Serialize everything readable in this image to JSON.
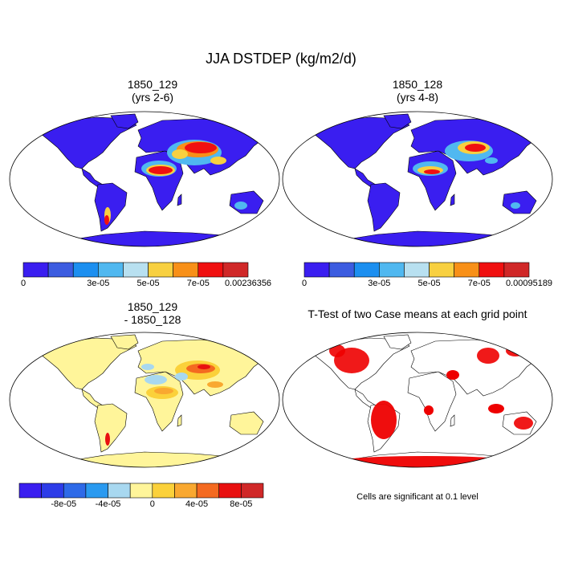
{
  "chart_data": {
    "type": "heatmap",
    "title": "JJA DSTDEP (kg/m2/d)",
    "panels": [
      {
        "title": "1850_129",
        "subtitle": "(yrs 2-6)",
        "colorbar": {
          "colors": [
            "#3a1ef0",
            "#3c5ce0",
            "#1c8ff0",
            "#50b8f0",
            "#b8e0f0",
            "#f8d040",
            "#f89018",
            "#f01010",
            "#d02828"
          ],
          "tick_labels": [
            "0",
            "3e-05",
            "5e-05",
            "7e-05",
            "0.00236356"
          ]
        }
      },
      {
        "title": "1850_128",
        "subtitle": "(yrs 4-8)",
        "colorbar": {
          "colors": [
            "#3a1ef0",
            "#3c5ce0",
            "#1c8ff0",
            "#50b8f0",
            "#b8e0f0",
            "#f8d040",
            "#f89018",
            "#f01010",
            "#d02828"
          ],
          "tick_labels": [
            "0",
            "3e-05",
            "5e-05",
            "7e-05",
            "0.00095189"
          ]
        }
      },
      {
        "title": "1850_129",
        "subtitle": "- 1850_128",
        "colorbar": {
          "colors": [
            "#3a1ef0",
            "#2d3ce8",
            "#2e6ae8",
            "#2a9af0",
            "#a8d8f0",
            "#fff59a",
            "#fbd13a",
            "#f9a830",
            "#f46a20",
            "#e81010",
            "#d02828"
          ],
          "tick_labels": [
            "-8e-05",
            "-4e-05",
            "0",
            "4e-05",
            "8e-05"
          ]
        }
      },
      {
        "title": "T-Test of two Case means at each grid point",
        "subtitle": "",
        "footnote": "Cells are significant at 0.1 level",
        "colors": {
          "significant": "#ee0000"
        }
      }
    ]
  }
}
